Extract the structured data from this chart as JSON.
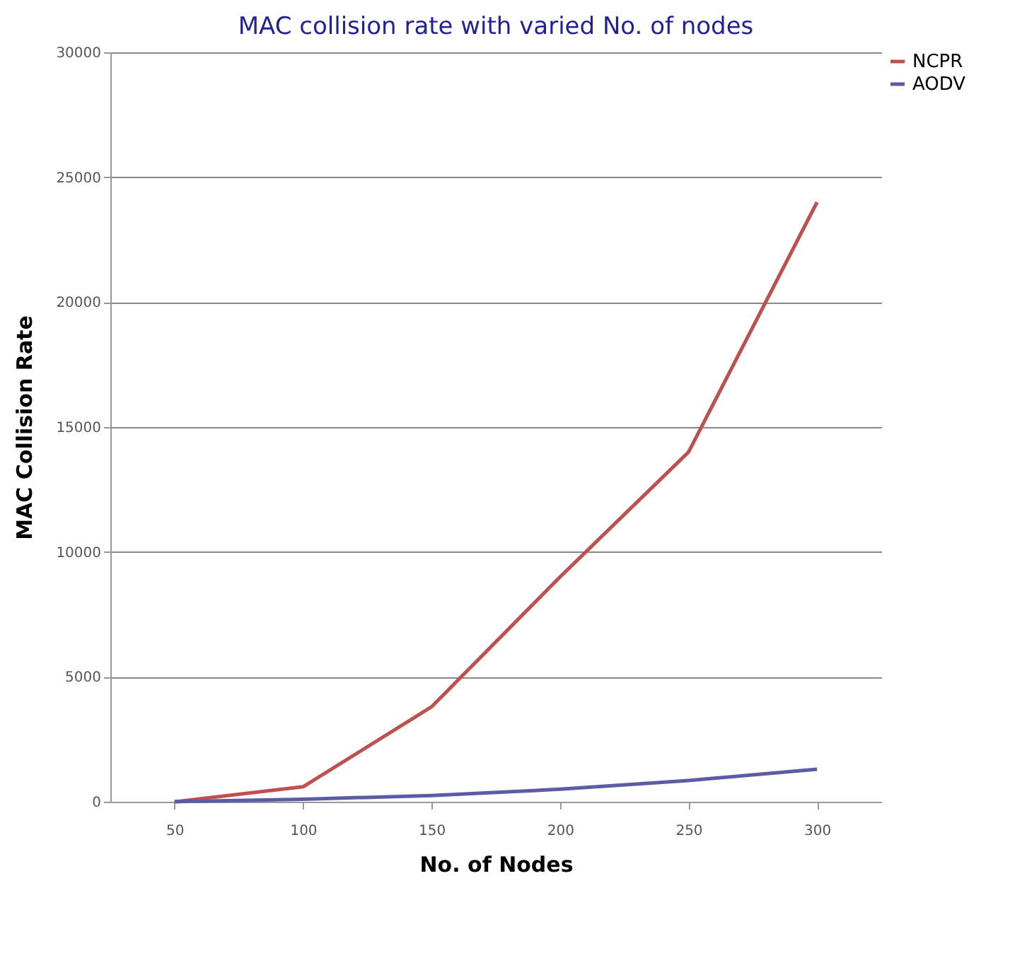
{
  "chart_data": {
    "type": "line",
    "title": "MAC collision rate with varied No. of nodes",
    "xlabel": "No. of Nodes",
    "ylabel": "MAC Collision Rate",
    "categories": [
      "50",
      "100",
      "150",
      "200",
      "250",
      "300"
    ],
    "series": [
      {
        "name": "NCPR",
        "color": "#c0504d",
        "values": [
          0,
          600,
          3800,
          9000,
          14000,
          24000
        ]
      },
      {
        "name": "AODV",
        "color": "#5b5ba8",
        "values": [
          0,
          100,
          250,
          500,
          850,
          1300
        ]
      }
    ],
    "ylim": [
      0,
      30000
    ],
    "yticks": [
      0,
      5000,
      10000,
      15000,
      20000,
      25000,
      30000
    ],
    "grid": "y",
    "legend": "right"
  }
}
